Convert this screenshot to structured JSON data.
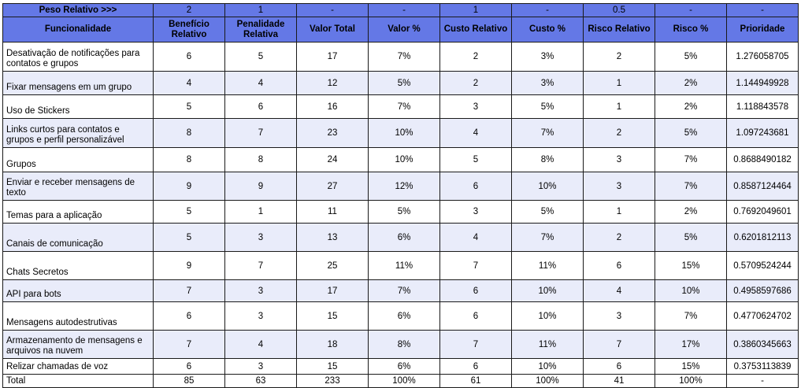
{
  "weights_row": [
    "Peso Relativo  >>>",
    "2",
    "1",
    "-",
    "-",
    "1",
    "-",
    "0.5",
    "-",
    "-"
  ],
  "headers": [
    "Funcionalidade",
    "Benefício Relativo",
    "Penalidade Relativa",
    "Valor Total",
    "Valor %",
    "Custo Relativo",
    "Custo %",
    "Risco Relativo",
    "Risco %",
    "Prioridade"
  ],
  "rows": [
    [
      "Desativação de notificações para contatos e grupos",
      "6",
      "5",
      "17",
      "7%",
      "2",
      "3%",
      "2",
      "5%",
      "1.276058705"
    ],
    [
      "Fixar mensagens em um grupo",
      "4",
      "4",
      "12",
      "5%",
      "2",
      "3%",
      "1",
      "2%",
      "1.144949928"
    ],
    [
      "Uso de Stickers",
      "5",
      "6",
      "16",
      "7%",
      "3",
      "5%",
      "1",
      "2%",
      "1.118843578"
    ],
    [
      "Links curtos para contatos e grupos e perfil personalizável",
      "8",
      "7",
      "23",
      "10%",
      "4",
      "7%",
      "2",
      "5%",
      "1.097243681"
    ],
    [
      "Grupos",
      "8",
      "8",
      "24",
      "10%",
      "5",
      "8%",
      "3",
      "7%",
      "0.8688490182"
    ],
    [
      "Enviar e receber mensagens de texto",
      "9",
      "9",
      "27",
      "12%",
      "6",
      "10%",
      "3",
      "7%",
      "0.8587124464"
    ],
    [
      "Temas para a aplicação",
      "5",
      "1",
      "11",
      "5%",
      "3",
      "5%",
      "1",
      "2%",
      "0.7692049601"
    ],
    [
      "Canais de comunicação",
      "5",
      "3",
      "13",
      "6%",
      "4",
      "7%",
      "2",
      "5%",
      "0.6201812113"
    ],
    [
      "Chats Secretos",
      "9",
      "7",
      "25",
      "11%",
      "7",
      "11%",
      "6",
      "15%",
      "0.5709524244"
    ],
    [
      "API para bots",
      "7",
      "3",
      "17",
      "7%",
      "6",
      "10%",
      "4",
      "10%",
      "0.4958597686"
    ],
    [
      "Mensagens autodestrutivas",
      "6",
      "3",
      "15",
      "6%",
      "6",
      "10%",
      "3",
      "7%",
      "0.4770624702"
    ],
    [
      "Armazenamento de mensagens e arquivos na nuvem",
      "7",
      "4",
      "18",
      "8%",
      "7",
      "11%",
      "7",
      "17%",
      "0.3860345663"
    ],
    [
      "Relizar chamadas de voz",
      "6",
      "3",
      "15",
      "6%",
      "6",
      "10%",
      "6",
      "15%",
      "0.3753113839"
    ]
  ],
  "total_row": [
    "Total",
    "85",
    "63",
    "233",
    "100%",
    "61",
    "100%",
    "41",
    "100%",
    "-"
  ],
  "colors": {
    "header_blue": "#6478e6",
    "stripe": "#e9ecfa"
  }
}
